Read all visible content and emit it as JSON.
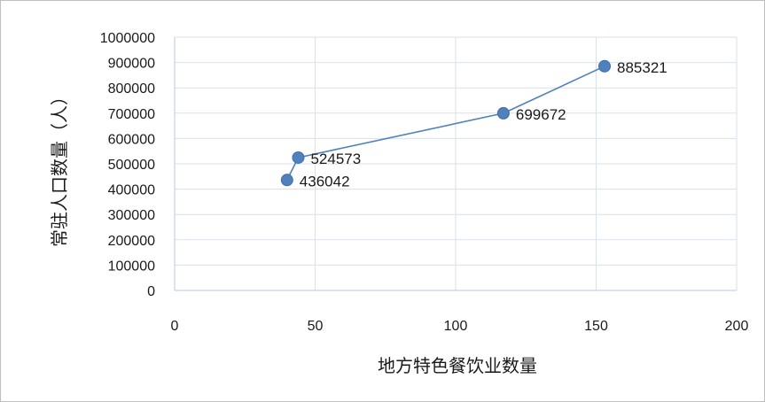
{
  "chart_data": {
    "type": "scatter",
    "title": "",
    "xlabel": "地方特色餐饮业数量",
    "ylabel": "常驻人口数量（人）",
    "xlim": [
      0,
      200
    ],
    "ylim": [
      0,
      1000000
    ],
    "x_ticks": [
      0,
      50,
      100,
      150,
      200
    ],
    "y_ticks": [
      0,
      100000,
      200000,
      300000,
      400000,
      500000,
      600000,
      700000,
      800000,
      900000,
      1000000
    ],
    "grid": true,
    "legend": "none",
    "series": [
      {
        "color": "#4f81bd",
        "points": [
          {
            "x": 40,
            "y": 436042,
            "label": "436042"
          },
          {
            "x": 44,
            "y": 524573,
            "label": "524573"
          },
          {
            "x": 117,
            "y": 699672,
            "label": "699672"
          },
          {
            "x": 153,
            "y": 885321,
            "label": "885321"
          }
        ]
      }
    ]
  }
}
